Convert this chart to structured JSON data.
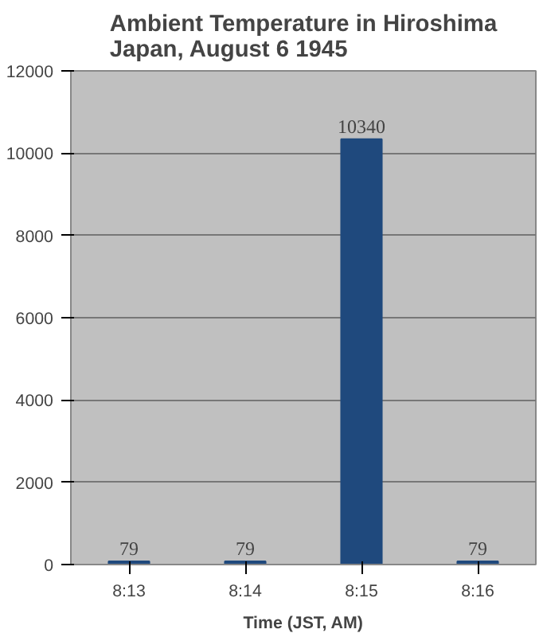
{
  "chart_data": {
    "type": "bar",
    "title": "Ambient Temperature in Hiroshima Japan, August 6 1945",
    "xlabel": "Time (JST, AM)",
    "categories": [
      "8:13",
      "8:14",
      "8:15",
      "8:16"
    ],
    "values": [
      79,
      79,
      10340,
      79
    ],
    "color": "#1f497d",
    "ylim": [
      0,
      12000
    ],
    "yticks": [
      0,
      2000,
      4000,
      6000,
      8000,
      10000,
      12000
    ],
    "grid": "y",
    "data_labels": true
  }
}
